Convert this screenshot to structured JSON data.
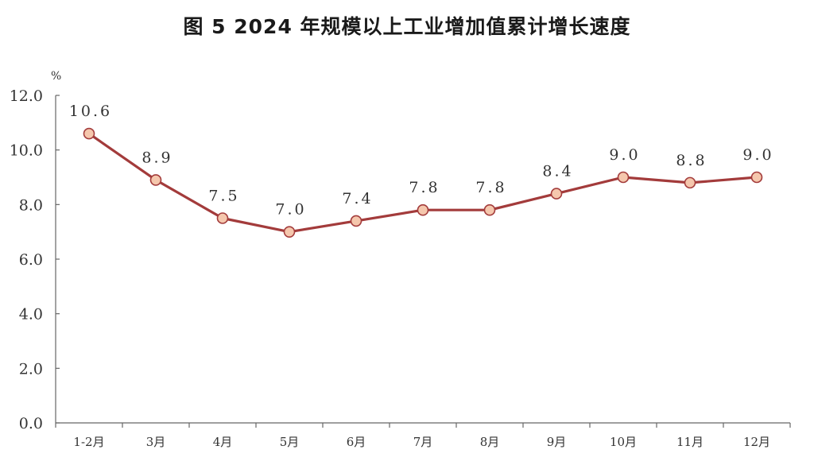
{
  "chart_data": {
    "type": "line",
    "title": "图 5   2024 年规模以上工业增加值累计增长速度",
    "ylabel": "%",
    "xlabel": "",
    "categories": [
      "1-2月",
      "3月",
      "4月",
      "5月",
      "6月",
      "7月",
      "8月",
      "9月",
      "10月",
      "11月",
      "12月"
    ],
    "values": [
      10.6,
      8.9,
      7.5,
      7.0,
      7.4,
      7.8,
      7.8,
      8.4,
      9.0,
      8.8,
      9.0
    ],
    "data_labels": [
      "10.6",
      "8.9",
      "7.5",
      "7.0",
      "7.4",
      "7.8",
      "7.8",
      "8.4",
      "9.0",
      "8.8",
      "9.0"
    ],
    "yticks": [
      "0.0",
      "2.0",
      "4.0",
      "6.0",
      "8.0",
      "10.0",
      "12.0"
    ],
    "ylim": [
      0,
      12
    ],
    "grid": false,
    "legend": "none",
    "colors": {
      "line": "#a33b3b",
      "marker_fill": "#f5c7ad",
      "marker_stroke": "#a33b3b",
      "axis": "#666666"
    }
  }
}
